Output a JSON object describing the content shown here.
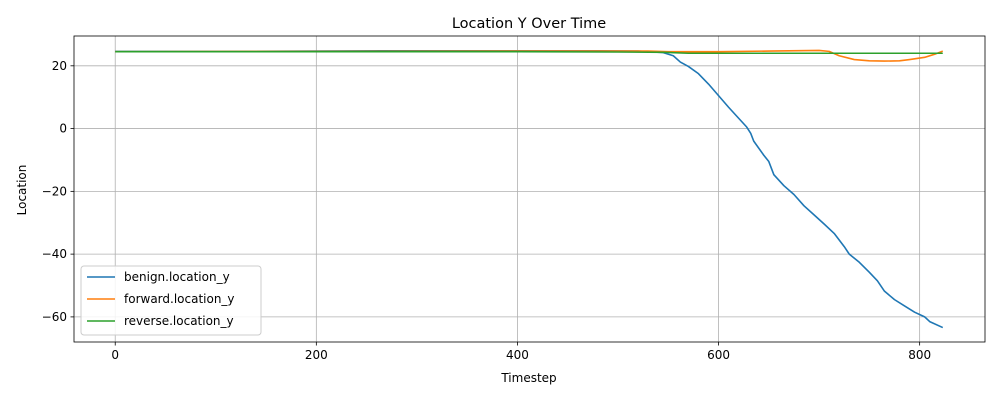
{
  "chart_data": {
    "type": "line",
    "title": "Location Y Over Time",
    "xlabel": "Timestep",
    "ylabel": "Location",
    "xlim": [
      -41,
      865
    ],
    "ylim": [
      -68,
      29.5
    ],
    "xticks": [
      0,
      200,
      400,
      600,
      800
    ],
    "yticks": [
      -60,
      -40,
      -20,
      0,
      20
    ],
    "xtick_labels": [
      "0",
      "200",
      "400",
      "600",
      "800"
    ],
    "ytick_labels": [
      "−60",
      "−40",
      "−20",
      "0",
      "20"
    ],
    "grid": true,
    "legend_position": "lower-left",
    "series": [
      {
        "name": "benign.location_y",
        "color": "#1f77b4",
        "points": [
          [
            0,
            24.6
          ],
          [
            100,
            24.6
          ],
          [
            200,
            24.7
          ],
          [
            300,
            24.8
          ],
          [
            400,
            24.8
          ],
          [
            480,
            24.8
          ],
          [
            520,
            24.7
          ],
          [
            545,
            24.2
          ],
          [
            555,
            23.2
          ],
          [
            562,
            21.2
          ],
          [
            570,
            19.8
          ],
          [
            580,
            17.5
          ],
          [
            590,
            14.2
          ],
          [
            600,
            10.5
          ],
          [
            610,
            6.8
          ],
          [
            620,
            3.3
          ],
          [
            628,
            0.5
          ],
          [
            632,
            -1.5
          ],
          [
            635,
            -4.0
          ],
          [
            645,
            -8.5
          ],
          [
            650,
            -10.5
          ],
          [
            655,
            -14.7
          ],
          [
            665,
            -18.2
          ],
          [
            675,
            -21.0
          ],
          [
            685,
            -24.6
          ],
          [
            695,
            -27.5
          ],
          [
            705,
            -30.4
          ],
          [
            715,
            -33.4
          ],
          [
            725,
            -37.6
          ],
          [
            730,
            -40.0
          ],
          [
            740,
            -42.6
          ],
          [
            750,
            -45.8
          ],
          [
            758,
            -48.5
          ],
          [
            765,
            -51.8
          ],
          [
            775,
            -54.5
          ],
          [
            785,
            -56.5
          ],
          [
            795,
            -58.5
          ],
          [
            805,
            -60.0
          ],
          [
            810,
            -61.5
          ],
          [
            823,
            -63.4
          ]
        ]
      },
      {
        "name": "forward.location_y",
        "color": "#ff7f0e",
        "points": [
          [
            0,
            24.5
          ],
          [
            200,
            24.6
          ],
          [
            400,
            24.7
          ],
          [
            530,
            24.7
          ],
          [
            550,
            24.5
          ],
          [
            600,
            24.5
          ],
          [
            650,
            24.7
          ],
          [
            700,
            24.9
          ],
          [
            710,
            24.6
          ],
          [
            720,
            23.2
          ],
          [
            735,
            22.0
          ],
          [
            750,
            21.6
          ],
          [
            765,
            21.5
          ],
          [
            780,
            21.6
          ],
          [
            790,
            22.0
          ],
          [
            805,
            22.7
          ],
          [
            815,
            23.7
          ],
          [
            823,
            24.7
          ]
        ]
      },
      {
        "name": "reverse.location_y",
        "color": "#2ca02c",
        "points": [
          [
            0,
            24.5
          ],
          [
            200,
            24.5
          ],
          [
            400,
            24.5
          ],
          [
            500,
            24.4
          ],
          [
            545,
            24.3
          ],
          [
            570,
            24.0
          ],
          [
            700,
            24.0
          ],
          [
            823,
            24.0
          ]
        ]
      }
    ]
  }
}
